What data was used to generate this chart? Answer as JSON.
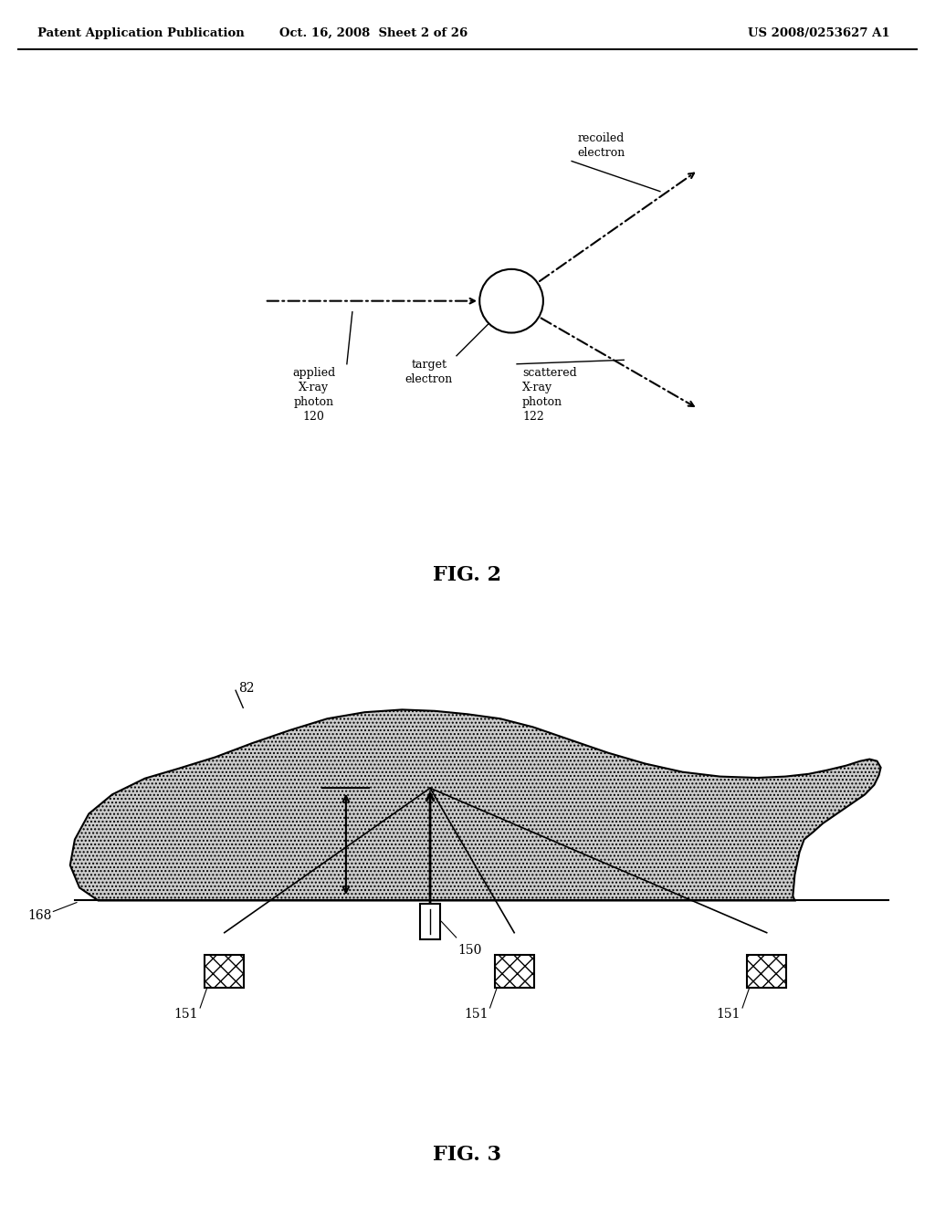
{
  "bg_color": "#ffffff",
  "header_text": "Patent Application Publication",
  "header_date": "Oct. 16, 2008  Sheet 2 of 26",
  "header_patent": "US 2008/0253627 A1",
  "fig2_label": "FIG. 2",
  "fig3_label": "FIG. 3"
}
